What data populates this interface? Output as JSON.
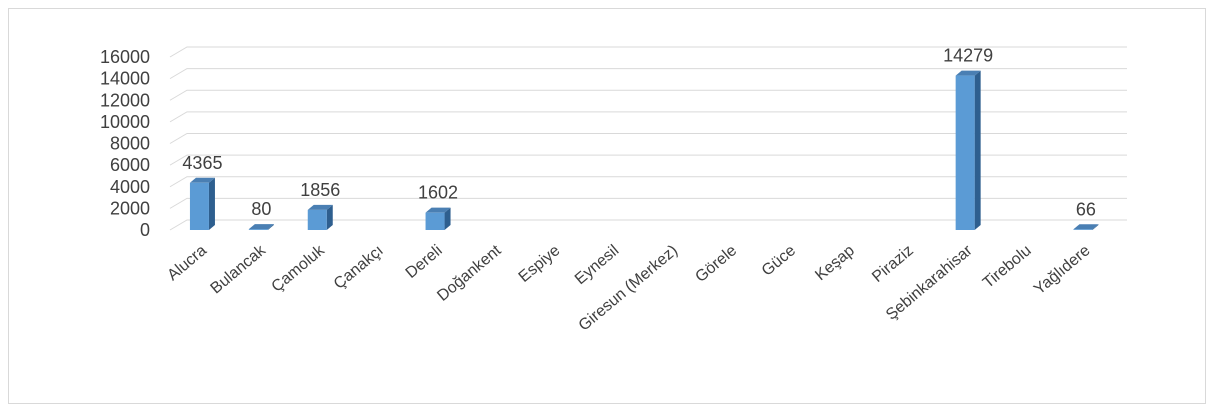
{
  "chart_data": {
    "type": "bar",
    "categories": [
      "Alucra",
      "Bulancak",
      "Çamoluk",
      "Çanakçı",
      "Dereli",
      "Doğankent",
      "Espiye",
      "Eynesil",
      "Giresun (Merkez)",
      "Görele",
      "Güce",
      "Keşap",
      "Piraziz",
      "Şebinkarahisar",
      "Tirebolu",
      "Yağlıdere"
    ],
    "values": [
      4365,
      80,
      1856,
      null,
      1602,
      null,
      null,
      null,
      null,
      null,
      null,
      null,
      null,
      14279,
      null,
      66
    ],
    "data_labels": [
      "4365",
      "80",
      "1856",
      "",
      "1602",
      "",
      "",
      "",
      "",
      "",
      "",
      "",
      "",
      "14279",
      "",
      "66"
    ],
    "yticks": [
      0,
      2000,
      4000,
      6000,
      8000,
      10000,
      12000,
      14000,
      16000
    ],
    "ylim": [
      0,
      16000
    ],
    "grid": true,
    "colors": {
      "bar_front": "#5b9bd5",
      "bar_side": "#2e5f8f",
      "bar_top": "#4a7fb3",
      "grid": "#d9d9d9",
      "text": "#404040"
    }
  }
}
